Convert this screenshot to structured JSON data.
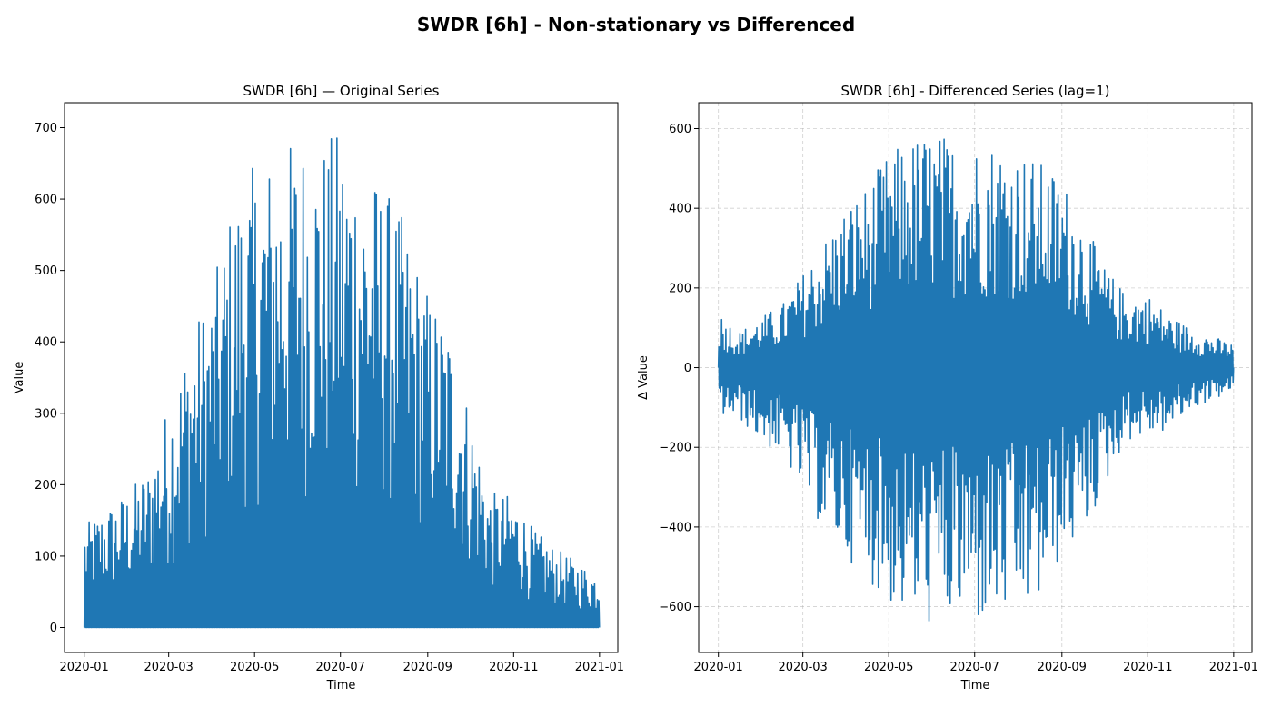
{
  "figure": {
    "suptitle": "SWDR [6h] - Non-stationary vs Differenced"
  },
  "chart_data": [
    {
      "type": "line",
      "title": "SWDR [6h] — Original Series",
      "xlabel": "Time",
      "ylabel": "Value",
      "x_ticks": [
        "2020-01",
        "2020-03",
        "2020-05",
        "2020-07",
        "2020-09",
        "2020-11",
        "2021-01"
      ],
      "y_ticks": [
        0,
        100,
        200,
        300,
        400,
        500,
        600,
        700
      ],
      "xlim": [
        "2019-12-18",
        "2021-01-14"
      ],
      "ylim": [
        -35,
        735
      ],
      "grid": false,
      "series": [
        {
          "color": "#1f77b4",
          "x_start": "2020-01-01",
          "x_end": "2020-12-31",
          "sampling": "6h",
          "monthly_peak": [
            {
              "x": "2020-01-01",
              "y": 143
            },
            {
              "x": "2020-01-15",
              "y": 167
            },
            {
              "x": "2020-02-01",
              "y": 192
            },
            {
              "x": "2020-02-15",
              "y": 225
            },
            {
              "x": "2020-03-01",
              "y": 320
            },
            {
              "x": "2020-03-15",
              "y": 412
            },
            {
              "x": "2020-04-01",
              "y": 480
            },
            {
              "x": "2020-04-15",
              "y": 601
            },
            {
              "x": "2020-05-01",
              "y": 650
            },
            {
              "x": "2020-05-15",
              "y": 665
            },
            {
              "x": "2020-06-01",
              "y": 693
            },
            {
              "x": "2020-06-15",
              "y": 680
            },
            {
              "x": "2020-07-01",
              "y": 700
            },
            {
              "x": "2020-07-15",
              "y": 656
            },
            {
              "x": "2020-08-01",
              "y": 620
            },
            {
              "x": "2020-08-15",
              "y": 570
            },
            {
              "x": "2020-09-01",
              "y": 472
            },
            {
              "x": "2020-09-15",
              "y": 430
            },
            {
              "x": "2020-10-01",
              "y": 302
            },
            {
              "x": "2020-10-15",
              "y": 190
            },
            {
              "x": "2020-11-01",
              "y": 185
            },
            {
              "x": "2020-11-15",
              "y": 136
            },
            {
              "x": "2020-12-01",
              "y": 110
            },
            {
              "x": "2020-12-31",
              "y": 74
            }
          ]
        }
      ]
    },
    {
      "type": "line",
      "title": "SWDR [6h] - Differenced Series (lag=1)",
      "xlabel": "Time",
      "ylabel": "Δ Value",
      "x_ticks": [
        "2020-01",
        "2020-03",
        "2020-05",
        "2020-07",
        "2020-09",
        "2020-11",
        "2021-01"
      ],
      "y_ticks": [
        -600,
        -400,
        -200,
        0,
        200,
        400,
        600
      ],
      "xlim": [
        "2019-12-18",
        "2021-01-14"
      ],
      "ylim": [
        -715,
        665
      ],
      "grid": true,
      "series": [
        {
          "color": "#1f77b4",
          "x_start": "2020-01-01",
          "x_end": "2020-12-31",
          "sampling": "6h",
          "monthly_peak": [
            {
              "x": "2020-01-01",
              "y": 143
            },
            {
              "x": "2020-01-15",
              "y": 90
            },
            {
              "x": "2020-02-01",
              "y": 130
            },
            {
              "x": "2020-02-15",
              "y": 160
            },
            {
              "x": "2020-03-01",
              "y": 240
            },
            {
              "x": "2020-03-15",
              "y": 320
            },
            {
              "x": "2020-04-01",
              "y": 415
            },
            {
              "x": "2020-04-15",
              "y": 460
            },
            {
              "x": "2020-05-01",
              "y": 540
            },
            {
              "x": "2020-05-15",
              "y": 575
            },
            {
              "x": "2020-06-01",
              "y": 600
            },
            {
              "x": "2020-06-15",
              "y": 575
            },
            {
              "x": "2020-07-01",
              "y": 570
            },
            {
              "x": "2020-07-15",
              "y": 575
            },
            {
              "x": "2020-08-01",
              "y": 550
            },
            {
              "x": "2020-08-15",
              "y": 520
            },
            {
              "x": "2020-09-01",
              "y": 480
            },
            {
              "x": "2020-09-15",
              "y": 380
            },
            {
              "x": "2020-10-01",
              "y": 255
            },
            {
              "x": "2020-10-15",
              "y": 190
            },
            {
              "x": "2020-11-01",
              "y": 185
            },
            {
              "x": "2020-11-15",
              "y": 135
            },
            {
              "x": "2020-12-01",
              "y": 100
            },
            {
              "x": "2020-12-31",
              "y": 60
            }
          ],
          "monthly_trough": [
            {
              "x": "2020-01-01",
              "y": -120
            },
            {
              "x": "2020-01-15",
              "y": -130
            },
            {
              "x": "2020-02-01",
              "y": -190
            },
            {
              "x": "2020-02-15",
              "y": -225
            },
            {
              "x": "2020-03-01",
              "y": -320
            },
            {
              "x": "2020-03-15",
              "y": -410
            },
            {
              "x": "2020-04-01",
              "y": -480
            },
            {
              "x": "2020-04-15",
              "y": -530
            },
            {
              "x": "2020-05-01",
              "y": -600
            },
            {
              "x": "2020-05-15",
              "y": -630
            },
            {
              "x": "2020-06-01",
              "y": -655
            },
            {
              "x": "2020-06-15",
              "y": -640
            },
            {
              "x": "2020-07-01",
              "y": -650
            },
            {
              "x": "2020-07-15",
              "y": -640
            },
            {
              "x": "2020-08-01",
              "y": -620
            },
            {
              "x": "2020-08-15",
              "y": -600
            },
            {
              "x": "2020-09-01",
              "y": -470
            },
            {
              "x": "2020-09-15",
              "y": -430
            },
            {
              "x": "2020-10-01",
              "y": -300
            },
            {
              "x": "2020-10-15",
              "y": -185
            },
            {
              "x": "2020-11-01",
              "y": -170
            },
            {
              "x": "2020-11-15",
              "y": -160
            },
            {
              "x": "2020-12-01",
              "y": -105
            },
            {
              "x": "2020-12-31",
              "y": -60
            }
          ]
        }
      ]
    }
  ]
}
